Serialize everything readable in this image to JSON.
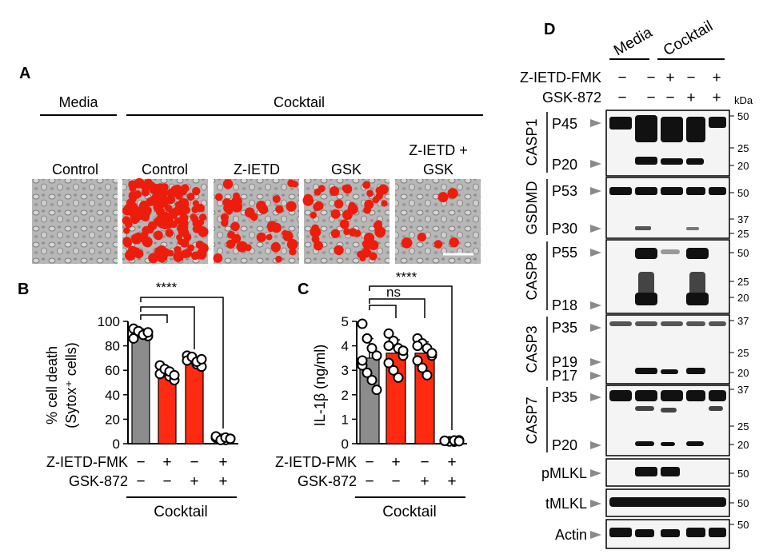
{
  "panel_a": {
    "letter": "A",
    "group_media": "Media",
    "group_cocktail": "Cocktail",
    "image_labels": [
      "Control",
      "Control",
      "Z-IETD",
      "GSK",
      "Z-IETD +",
      "GSK"
    ]
  },
  "panel_b": {
    "letter": "B",
    "significance": "****",
    "ylabel_line1": "% cell death",
    "ylabel_line2": "(Sytox⁺ cells)",
    "treatment_1": "Z-IETD-FMK",
    "treatment_2": "GSK-872",
    "signs_1": [
      "−",
      "+",
      "−",
      "+"
    ],
    "signs_2": [
      "−",
      "−",
      "+",
      "+"
    ],
    "group_label": "Cocktail"
  },
  "panel_c": {
    "letter": "C",
    "ns": "ns",
    "significance": "****",
    "ylabel": "IL-1β (ng/ml)",
    "treatment_1": "Z-IETD-FMK",
    "treatment_2": "GSK-872",
    "signs_1": [
      "−",
      "+",
      "−",
      "+"
    ],
    "signs_2": [
      "−",
      "−",
      "+",
      "+"
    ],
    "group_label": "Cocktail"
  },
  "panel_d": {
    "letter": "D",
    "media": "Media",
    "cocktail": "Cocktail",
    "treatment_1": "Z-IETD-FMK",
    "treatment_2": "GSK-872",
    "signs_1": [
      "−",
      "−",
      "+",
      "−",
      "+"
    ],
    "signs_2": [
      "−",
      "−",
      "−",
      "+",
      "+"
    ],
    "kda": "kDa",
    "blots": [
      {
        "name": "CASP1",
        "bands": [
          "P45",
          "P20"
        ],
        "markers": [
          "50",
          "25",
          "20"
        ]
      },
      {
        "name": "GSDMD",
        "bands": [
          "P53",
          "P30"
        ],
        "markers": [
          "50",
          "37",
          "25"
        ]
      },
      {
        "name": "CASP8",
        "bands": [
          "P55",
          "P18"
        ],
        "markers": [
          "50",
          "25",
          "20"
        ]
      },
      {
        "name": "CASP3",
        "bands": [
          "P35",
          "P19",
          "P17"
        ],
        "markers": [
          "37",
          "25",
          "20"
        ]
      },
      {
        "name": "CASP7",
        "bands": [
          "P35",
          "P20"
        ],
        "markers": [
          "37",
          "25",
          "20"
        ]
      },
      {
        "name": "pMLKL",
        "markers": [
          "50"
        ]
      },
      {
        "name": "tMLKL",
        "markers": [
          "50"
        ]
      },
      {
        "name": "Actin",
        "markers": [
          "50"
        ]
      }
    ]
  },
  "colors": {
    "gray_bar": "#8c8c8c",
    "red_bar": "#ff2a0f",
    "cell_red": "#ee1c0c"
  },
  "chart_data": [
    {
      "type": "bar",
      "panel": "B",
      "ylabel": "% cell death (Sytox⁺ cells)",
      "ylim": [
        0,
        100
      ],
      "yticks": [
        0,
        20,
        40,
        60,
        80,
        100
      ],
      "categories": [
        "−/−",
        "+/−",
        "−/+",
        "+/+"
      ],
      "values": [
        90,
        58,
        68,
        4
      ],
      "points": [
        [
          94,
          92,
          90,
          88,
          86,
          92,
          89,
          91
        ],
        [
          64,
          60,
          55,
          52,
          57,
          61,
          59,
          56
        ],
        [
          72,
          70,
          65,
          63,
          68,
          71,
          67,
          69
        ],
        [
          5,
          4,
          3,
          4,
          6,
          3,
          5,
          4
        ]
      ],
      "bar_colors": [
        "#8c8c8c",
        "#ff2a0f",
        "#ff2a0f",
        "#ff2a0f"
      ]
    },
    {
      "type": "bar",
      "panel": "C",
      "ylabel": "IL-1β (ng/ml)",
      "ylim": [
        0,
        5
      ],
      "yticks": [
        0,
        1,
        2,
        3,
        4,
        5
      ],
      "categories": [
        "−/−",
        "+/−",
        "−/+",
        "+/+"
      ],
      "values": [
        3.5,
        3.7,
        3.7,
        0.1
      ],
      "points": [
        [
          4.9,
          4.3,
          3.9,
          3.6,
          3.2,
          2.9,
          2.6,
          2.2,
          3.4
        ],
        [
          4.5,
          4.2,
          3.9,
          3.6,
          3.3,
          3.0,
          2.7,
          3.8,
          4.0
        ],
        [
          4.3,
          4.1,
          3.9,
          3.6,
          3.4,
          3.1,
          2.8,
          3.7,
          4.0
        ],
        [
          0.12,
          0.1,
          0.08,
          0.14,
          0.11,
          0.09,
          0.13,
          0.1,
          0.12
        ]
      ],
      "bar_colors": [
        "#8c8c8c",
        "#ff2a0f",
        "#ff2a0f",
        "#ff2a0f"
      ]
    }
  ]
}
